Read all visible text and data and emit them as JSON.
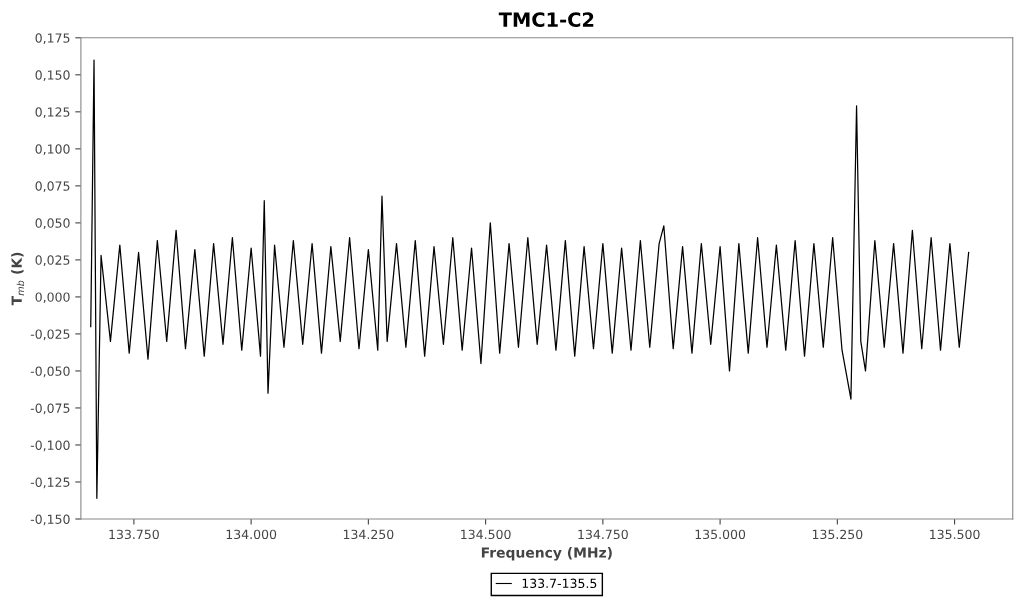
{
  "chart_data": {
    "type": "line",
    "title": "TMC1-C2",
    "xlabel": "Frequency (MHz)",
    "ylabel": "T$_{mb}$ (K)",
    "xlim": [
      133637,
      135624
    ],
    "ylim": [
      -0.15,
      0.175
    ],
    "xticks": [
      {
        "value": 133750,
        "label": "133.750"
      },
      {
        "value": 134000,
        "label": "134.000"
      },
      {
        "value": 134250,
        "label": "134.250"
      },
      {
        "value": 134500,
        "label": "134.500"
      },
      {
        "value": 134750,
        "label": "134.750"
      },
      {
        "value": 135000,
        "label": "135.000"
      },
      {
        "value": 135250,
        "label": "135.250"
      },
      {
        "value": 135500,
        "label": "135.500"
      }
    ],
    "yticks": [
      {
        "value": -0.15,
        "label": "-0,150"
      },
      {
        "value": -0.125,
        "label": "-0,125"
      },
      {
        "value": -0.1,
        "label": "-0,100"
      },
      {
        "value": -0.075,
        "label": "-0,075"
      },
      {
        "value": -0.05,
        "label": "-0,050"
      },
      {
        "value": -0.025,
        "label": "-0,025"
      },
      {
        "value": 0.0,
        "label": "0,000"
      },
      {
        "value": 0.025,
        "label": "0,025"
      },
      {
        "value": 0.05,
        "label": "0,050"
      },
      {
        "value": 0.075,
        "label": "0,075"
      },
      {
        "value": 0.1,
        "label": "0,100"
      },
      {
        "value": 0.125,
        "label": "0,125"
      },
      {
        "value": 0.15,
        "label": "0,150"
      },
      {
        "value": 0.175,
        "label": "0,175"
      }
    ],
    "grid": false,
    "legend": "bottom",
    "marker": "none",
    "line_style": "solid",
    "series": [
      {
        "name": "133.7-135.5",
        "color": "#000000",
        "x": [
          133658,
          133665,
          133671,
          133680,
          133700,
          133720,
          133740,
          133760,
          133780,
          133800,
          133820,
          133840,
          133860,
          133880,
          133900,
          133920,
          133940,
          133960,
          133980,
          134000,
          134020,
          134028,
          134036,
          134050,
          134070,
          134090,
          134110,
          134130,
          134150,
          134170,
          134190,
          134210,
          134230,
          134250,
          134270,
          134279,
          134290,
          134310,
          134330,
          134350,
          134370,
          134390,
          134410,
          134430,
          134450,
          134470,
          134490,
          134510,
          134530,
          134550,
          134570,
          134590,
          134610,
          134630,
          134650,
          134670,
          134690,
          134710,
          134730,
          134750,
          134770,
          134790,
          134810,
          134830,
          134850,
          134870,
          134880,
          134900,
          134920,
          134940,
          134960,
          134980,
          135000,
          135020,
          135040,
          135060,
          135080,
          135100,
          135120,
          135140,
          135160,
          135180,
          135200,
          135220,
          135240,
          135260,
          135279,
          135291,
          135300,
          135310,
          135330,
          135350,
          135370,
          135390,
          135410,
          135430,
          135450,
          135470,
          135490,
          135510,
          135530
        ],
        "values": [
          -0.02,
          0.16,
          -0.136,
          0.028,
          -0.03,
          0.035,
          -0.038,
          0.03,
          -0.042,
          0.038,
          -0.03,
          0.045,
          -0.035,
          0.032,
          -0.04,
          0.036,
          -0.032,
          0.04,
          -0.036,
          0.033,
          -0.04,
          0.065,
          -0.065,
          0.035,
          -0.034,
          0.038,
          -0.032,
          0.036,
          -0.038,
          0.034,
          -0.03,
          0.04,
          -0.035,
          0.032,
          -0.036,
          0.068,
          -0.03,
          0.036,
          -0.034,
          0.038,
          -0.04,
          0.034,
          -0.032,
          0.04,
          -0.036,
          0.033,
          -0.045,
          0.05,
          -0.038,
          0.036,
          -0.034,
          0.04,
          -0.032,
          0.035,
          -0.036,
          0.038,
          -0.04,
          0.034,
          -0.035,
          0.036,
          -0.038,
          0.033,
          -0.036,
          0.038,
          -0.034,
          0.036,
          0.048,
          -0.035,
          0.034,
          -0.038,
          0.036,
          -0.032,
          0.034,
          -0.05,
          0.036,
          -0.038,
          0.04,
          -0.034,
          0.035,
          -0.036,
          0.038,
          -0.04,
          0.036,
          -0.034,
          0.04,
          -0.036,
          -0.069,
          0.129,
          -0.03,
          -0.05,
          0.038,
          -0.034,
          0.036,
          -0.038,
          0.045,
          -0.035,
          0.04,
          -0.036,
          0.036,
          -0.034,
          0.03
        ]
      }
    ]
  }
}
